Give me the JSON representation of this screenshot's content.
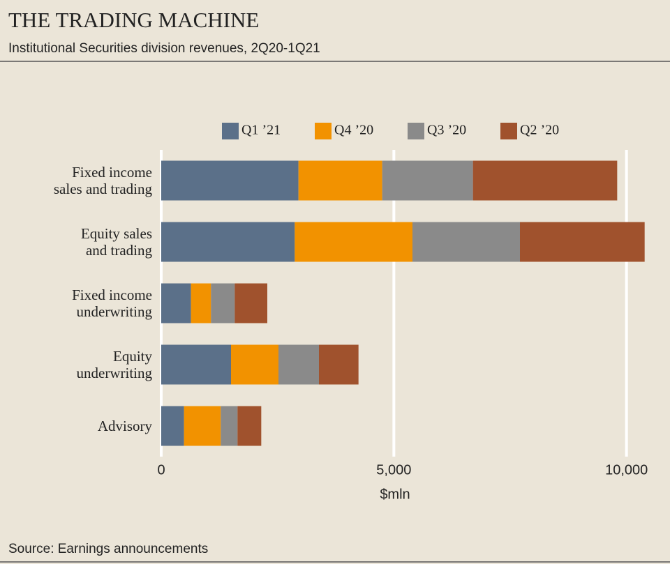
{
  "chart_data": {
    "type": "stacked_bar_horizontal",
    "title": "THE TRADING MACHINE",
    "subtitle": "Institutional Securities division revenues, 2Q20-1Q21",
    "source": "Source: Earnings announcements",
    "x_label": "$mln",
    "categories": [
      "Fixed income\nsales and trading",
      "Equity sales\nand trading",
      "Fixed income\nunderwriting",
      "Equity\nunderwriting",
      "Advisory"
    ],
    "series": [
      {
        "name": "Q1 ’21",
        "color": "#5b7089",
        "values": [
          2950,
          2870,
          640,
          1500,
          490
        ]
      },
      {
        "name": "Q4 ’20",
        "color": "#f29200",
        "values": [
          1800,
          2530,
          430,
          1020,
          790
        ]
      },
      {
        "name": "Q3 ’20",
        "color": "#8a8a8a",
        "values": [
          1950,
          2310,
          510,
          870,
          360
        ]
      },
      {
        "name": "Q2 ’20",
        "color": "#a0522d",
        "values": [
          3100,
          2680,
          700,
          850,
          510
        ]
      }
    ],
    "xlim": [
      0,
      10500
    ],
    "xticks": [
      0,
      {
        "value": 5000,
        "label": "5,000"
      },
      {
        "value": 10000,
        "label": "10,000"
      }
    ],
    "grid": true,
    "legend": "top"
  }
}
